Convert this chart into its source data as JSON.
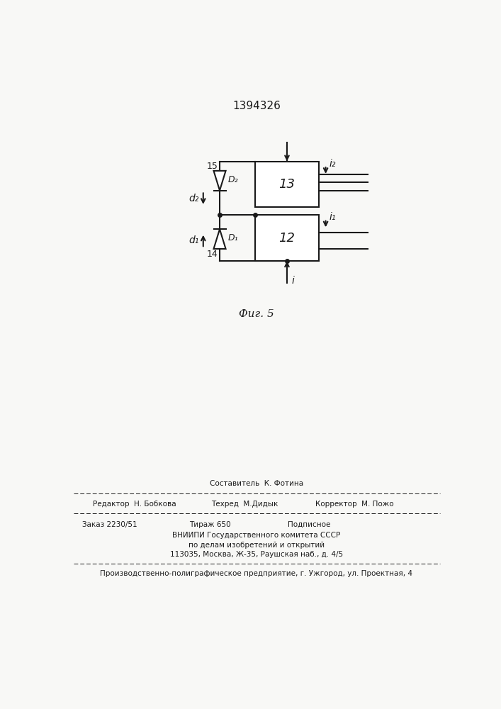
{
  "title": "1394326",
  "fig_label": "Фиг. 5",
  "background_color": "#f8f8f6",
  "line_color": "#1a1a1a",
  "block12_label": "12",
  "block13_label": "13",
  "label_15": "15",
  "label_14": "14",
  "d1_label": "D₁",
  "d2_label": "D₂",
  "signal_d1": "d₁",
  "signal_d2": "d₂",
  "signal_i": "i",
  "signal_i1": "i₁",
  "signal_i2": "i₂",
  "footer_sestavitel": "Составитель  К. Фотина",
  "footer_redaktor": "Редактор  Н. Бобкова",
  "footer_tehred": "Техред  М.Дидык",
  "footer_korrektor": "Корректор  М. Пожо",
  "footer_zakaz": "Заказ 2230/51",
  "footer_tirazh": "Тираж 650",
  "footer_podpisnoe": "Подписное",
  "footer_vniip1": "ВНИИПИ Государственного комитета СССР",
  "footer_vniip2": "по делам изобретений и открытий",
  "footer_addr": "113035, Москва, Ж-35, Раушская наб., д. 4/5",
  "footer_uggorod": "Производственно-полиграфическое предприятие, г. Ужгород, ул. Проектная, 4"
}
